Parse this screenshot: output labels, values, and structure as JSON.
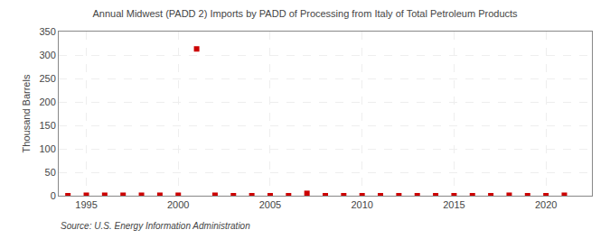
{
  "chart_data": {
    "type": "scatter",
    "title": "Annual Midwest (PADD 2) Imports by PADD of Processing from Italy of Total Petroleum Products",
    "y_label": "Thousand Barrels",
    "annotations": [
      "Source: U.S. Energy Information Administration"
    ],
    "x": [
      1994,
      1995,
      1996,
      1997,
      1998,
      1999,
      2000,
      2001,
      2002,
      2003,
      2004,
      2005,
      2006,
      2007,
      2008,
      2009,
      2010,
      2011,
      2012,
      2013,
      2014,
      2015,
      2016,
      2017,
      2018,
      2019,
      2020,
      2021
    ],
    "values": [
      0,
      1,
      1,
      1,
      1,
      1,
      1,
      313,
      1,
      0,
      0,
      0,
      0,
      5,
      0,
      0,
      0,
      0,
      0,
      0,
      0,
      0,
      0,
      0,
      1,
      0,
      0,
      1
    ],
    "color": "#cc0000",
    "marker": "square",
    "xlim": [
      1993.5,
      2022.5
    ],
    "xticks": [
      1995,
      2000,
      2005,
      2010,
      2015,
      2020
    ],
    "ylim": [
      0,
      350
    ],
    "yticks": [
      0,
      50,
      100,
      150,
      200,
      250,
      300,
      350
    ],
    "grid": true
  }
}
